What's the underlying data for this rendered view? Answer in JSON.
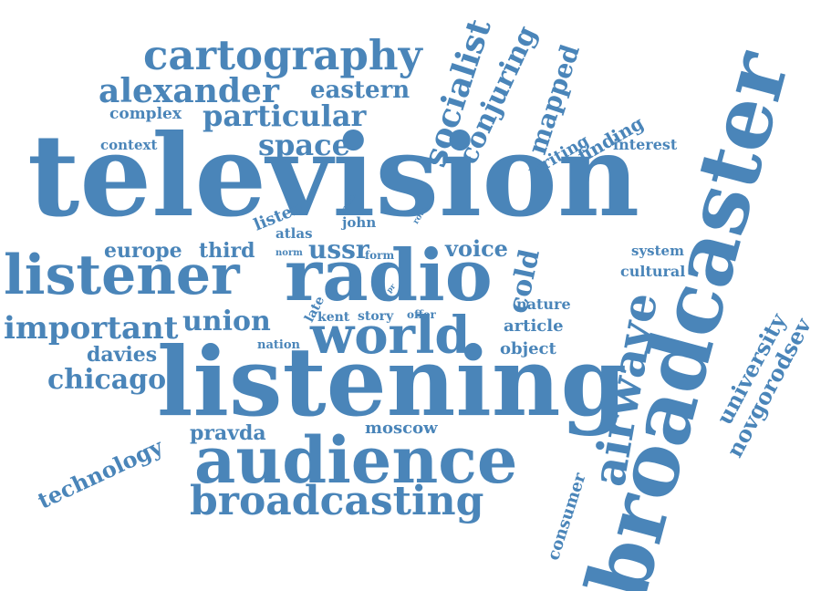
{
  "color": "#4a85b9",
  "words": [
    {
      "text": "television",
      "name": "word-television"
    },
    {
      "text": "broadcaster",
      "name": "word-broadcaster"
    },
    {
      "text": "listening",
      "name": "word-listening"
    },
    {
      "text": "listener",
      "name": "word-listener"
    },
    {
      "text": "radio",
      "name": "word-radio"
    },
    {
      "text": "audience",
      "name": "word-audience"
    },
    {
      "text": "world",
      "name": "word-world"
    },
    {
      "text": "broadcasting",
      "name": "word-broadcasting"
    },
    {
      "text": "airwave",
      "name": "word-airwave"
    },
    {
      "text": "cartography",
      "name": "word-cartography"
    },
    {
      "text": "alexander",
      "name": "word-alexander"
    },
    {
      "text": "particular",
      "name": "word-particular"
    },
    {
      "text": "socialist",
      "name": "word-socialist"
    },
    {
      "text": "conjuring",
      "name": "word-conjuring"
    },
    {
      "text": "important",
      "name": "word-important"
    },
    {
      "text": "mapped",
      "name": "word-mapped"
    },
    {
      "text": "eastern",
      "name": "word-eastern"
    },
    {
      "text": "space",
      "name": "word-space"
    },
    {
      "text": "union",
      "name": "word-union"
    },
    {
      "text": "cold",
      "name": "word-cold"
    },
    {
      "text": "university",
      "name": "word-university"
    },
    {
      "text": "novgorodsev",
      "name": "word-novgorodsev"
    },
    {
      "text": "chicago",
      "name": "word-chicago"
    },
    {
      "text": "technology",
      "name": "word-technology"
    },
    {
      "text": "ussr",
      "name": "word-ussr"
    },
    {
      "text": "voice",
      "name": "word-voice"
    },
    {
      "text": "europe",
      "name": "word-europe"
    },
    {
      "text": "third",
      "name": "word-third"
    },
    {
      "text": "davies",
      "name": "word-davies"
    },
    {
      "text": "pravda",
      "name": "word-pravda"
    },
    {
      "text": "moscow",
      "name": "word-moscow"
    },
    {
      "text": "finding",
      "name": "word-finding"
    },
    {
      "text": "writing",
      "name": "word-writing"
    },
    {
      "text": "interest",
      "name": "word-interest"
    },
    {
      "text": "complex",
      "name": "word-complex"
    },
    {
      "text": "context",
      "name": "word-context"
    },
    {
      "text": "article",
      "name": "word-article"
    },
    {
      "text": "object",
      "name": "word-object"
    },
    {
      "text": "nature",
      "name": "word-nature"
    },
    {
      "text": "cultural",
      "name": "word-cultural"
    },
    {
      "text": "system",
      "name": "word-system"
    },
    {
      "text": "consumer",
      "name": "word-consumer"
    },
    {
      "text": "listen",
      "name": "word-listen"
    },
    {
      "text": "atlas",
      "name": "word-atlas"
    },
    {
      "text": "john",
      "name": "word-john"
    },
    {
      "text": "kent",
      "name": "word-kent"
    },
    {
      "text": "story",
      "name": "word-story"
    },
    {
      "text": "nation",
      "name": "word-nation"
    },
    {
      "text": "offer",
      "name": "word-offer"
    },
    {
      "text": "late",
      "name": "word-late"
    },
    {
      "text": "form",
      "name": "word-form"
    },
    {
      "text": "norm",
      "name": "word-norm"
    },
    {
      "text": "main",
      "name": "word-main"
    },
    {
      "text": "roth",
      "name": "word-roth"
    },
    {
      "text": "pr",
      "name": "word-pr"
    }
  ]
}
